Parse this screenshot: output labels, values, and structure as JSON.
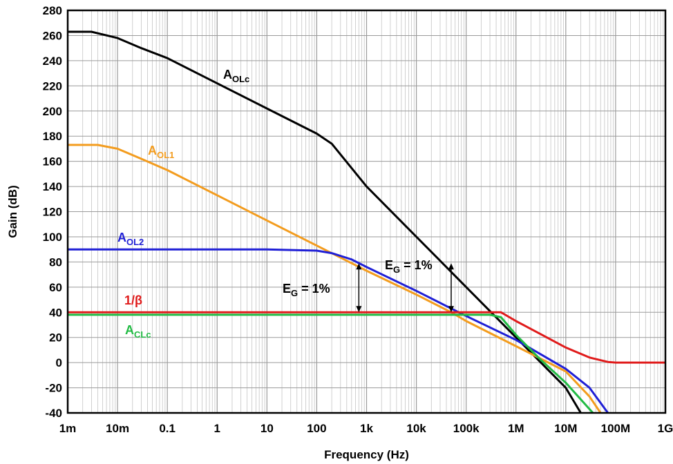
{
  "chart_data": {
    "type": "line",
    "xlabel": "Frequency (Hz)",
    "ylabel": "Gain (dB)",
    "x_scale": "log",
    "xlim": [
      0.001,
      1000000000
    ],
    "ylim": [
      -40,
      280
    ],
    "grid": true,
    "x_ticks": [
      {
        "value": 0.001,
        "label": "1m"
      },
      {
        "value": 0.01,
        "label": "10m"
      },
      {
        "value": 0.1,
        "label": "0.1"
      },
      {
        "value": 1,
        "label": "1"
      },
      {
        "value": 10,
        "label": "10"
      },
      {
        "value": 100,
        "label": "100"
      },
      {
        "value": 1000,
        "label": "1k"
      },
      {
        "value": 10000,
        "label": "10k"
      },
      {
        "value": 100000,
        "label": "100k"
      },
      {
        "value": 1000000,
        "label": "1M"
      },
      {
        "value": 10000000,
        "label": "10M"
      },
      {
        "value": 100000000,
        "label": "100M"
      },
      {
        "value": 1000000000,
        "label": "1G"
      }
    ],
    "y_ticks": [
      280,
      260,
      240,
      220,
      200,
      180,
      160,
      140,
      120,
      100,
      80,
      60,
      40,
      20,
      0,
      -20,
      -40
    ],
    "series": [
      {
        "label": {
          "main": "A",
          "sub": "OLc"
        },
        "color": "#000000",
        "points": [
          [
            0.001,
            263
          ],
          [
            0.003,
            263
          ],
          [
            0.01,
            258
          ],
          [
            0.03,
            250
          ],
          [
            0.1,
            242
          ],
          [
            1,
            222
          ],
          [
            10,
            202
          ],
          [
            100,
            182
          ],
          [
            200,
            174
          ],
          [
            1000,
            140
          ],
          [
            10000,
            100
          ],
          [
            100000,
            60
          ],
          [
            1000000,
            20
          ],
          [
            10000000,
            -20
          ],
          [
            20000000,
            -40
          ]
        ]
      },
      {
        "label": {
          "main": "A",
          "sub": "OL1"
        },
        "color": "#f39c1e",
        "points": [
          [
            0.001,
            173
          ],
          [
            0.004,
            173
          ],
          [
            0.01,
            170
          ],
          [
            0.03,
            162
          ],
          [
            0.1,
            153
          ],
          [
            1,
            133
          ],
          [
            10,
            113
          ],
          [
            100,
            93
          ],
          [
            1000,
            73
          ],
          [
            10000,
            54
          ],
          [
            50000,
            40
          ],
          [
            100000,
            33
          ],
          [
            1000000,
            13
          ],
          [
            10000000,
            -7
          ],
          [
            30000000,
            -27
          ],
          [
            50000000,
            -40
          ]
        ]
      },
      {
        "label": {
          "main": "A",
          "sub": "OL2"
        },
        "color": "#1f1fd6",
        "points": [
          [
            0.001,
            90
          ],
          [
            0.1,
            90
          ],
          [
            10,
            90
          ],
          [
            100,
            89
          ],
          [
            200,
            87
          ],
          [
            500,
            82
          ],
          [
            1000,
            76
          ],
          [
            10000,
            57
          ],
          [
            50000,
            43
          ],
          [
            100000,
            37
          ],
          [
            1000000,
            18
          ],
          [
            10000000,
            -5
          ],
          [
            30000000,
            -20
          ],
          [
            70000000,
            -40
          ]
        ]
      },
      {
        "label": {
          "main": "1/β",
          "sub": ""
        },
        "color": "#e01b1b",
        "points": [
          [
            0.001,
            40
          ],
          [
            500000,
            40
          ],
          [
            1000000,
            33
          ],
          [
            3000000,
            23
          ],
          [
            10000000,
            12
          ],
          [
            30000000,
            4
          ],
          [
            70000000,
            0.5
          ],
          [
            100000000,
            0
          ],
          [
            1000000000,
            0
          ]
        ]
      },
      {
        "label": {
          "main": "A",
          "sub": "CLc"
        },
        "color": "#22bb44",
        "points": [
          [
            0.001,
            38
          ],
          [
            100000,
            38
          ],
          [
            300000,
            38
          ],
          [
            500000,
            36
          ],
          [
            1000000,
            22
          ],
          [
            3000000,
            3
          ],
          [
            10000000,
            -16
          ],
          [
            35000000,
            -40
          ]
        ]
      }
    ],
    "annotations": [
      {
        "main": "E",
        "sub": "G",
        "rest": " = 1%",
        "x": 700,
        "y_from": 40,
        "y_to": 79
      },
      {
        "main": "E",
        "sub": "G",
        "rest": " = 1%",
        "x": 50000,
        "y_from": 40,
        "y_to": 79
      }
    ]
  }
}
